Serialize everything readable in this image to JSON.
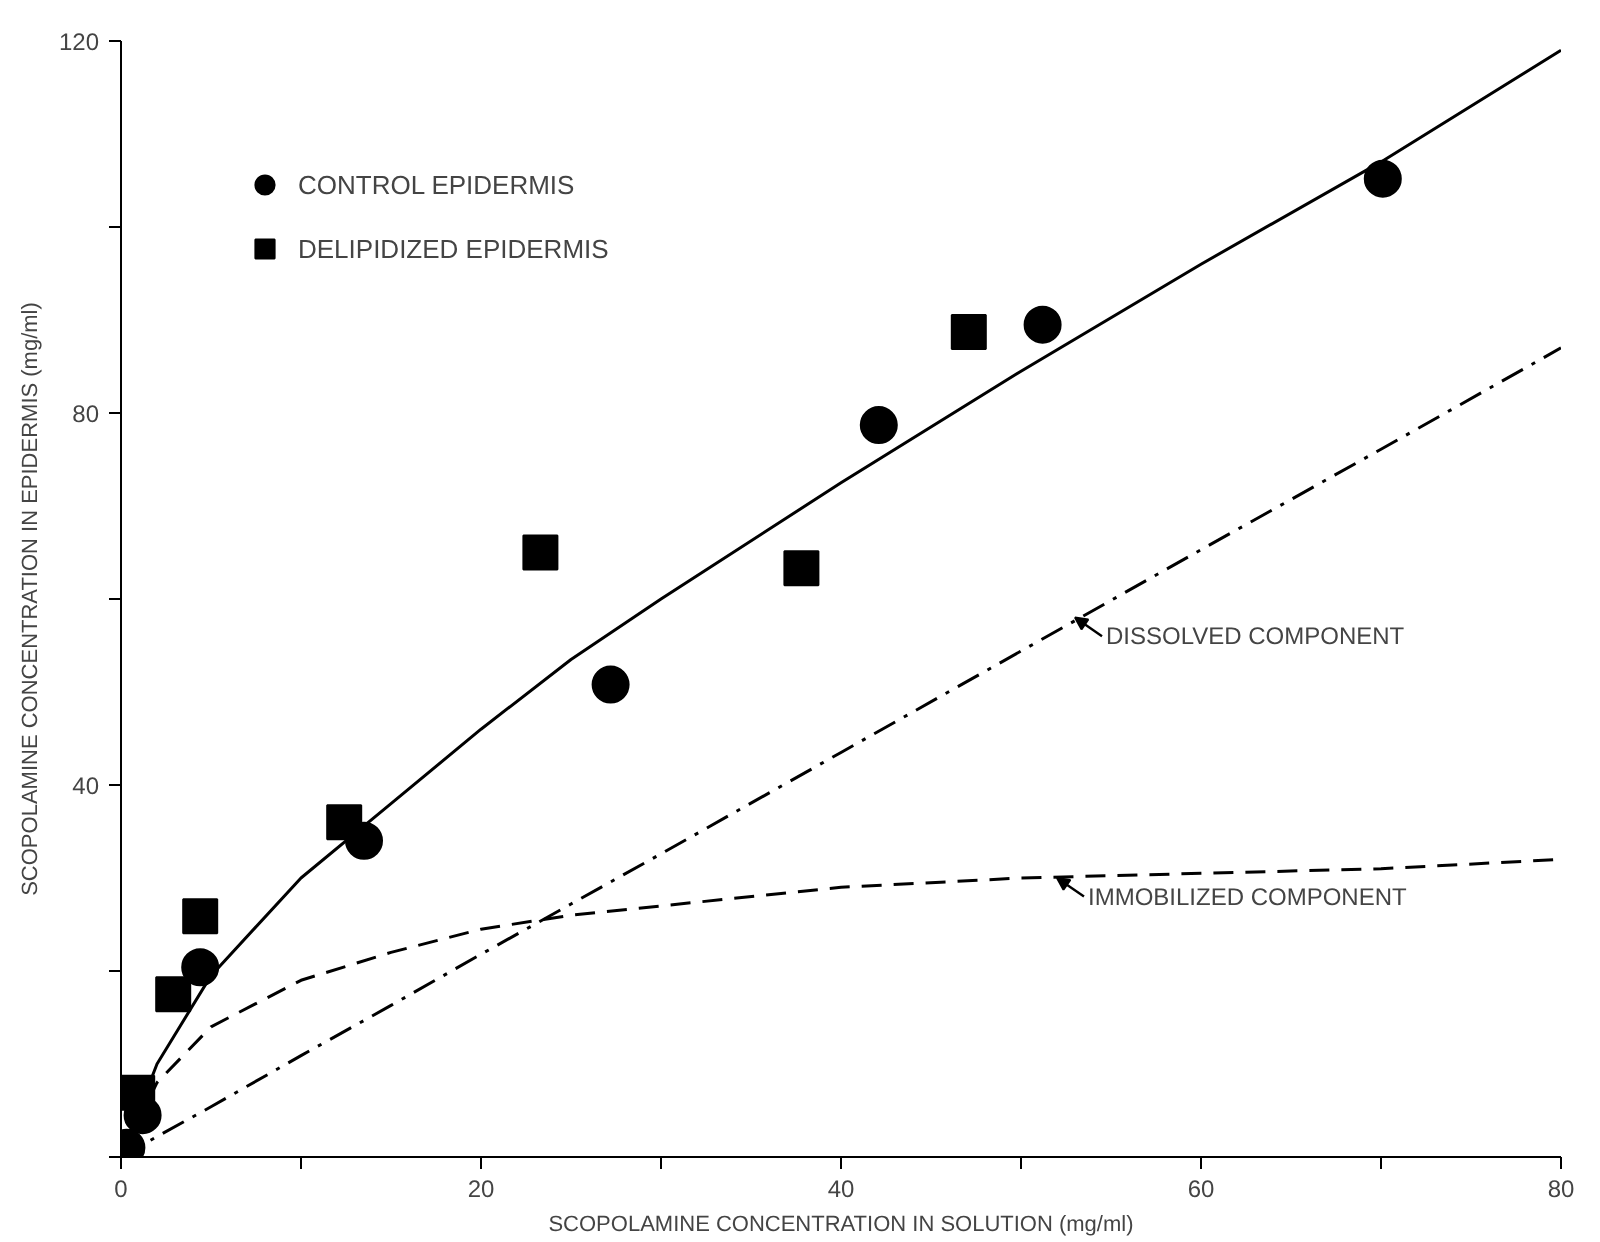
{
  "chart_data": {
    "type": "scatter",
    "xlabel": "SCOPOLAMINE CONCENTRATION IN SOLUTION (mg/ml)",
    "ylabel": "SCOPOLAMINE CONCENTRATION IN EPIDERMIS (mg/ml)",
    "xlim": [
      0,
      80
    ],
    "ylim": [
      0,
      120
    ],
    "xticks": [
      0,
      {
        "value": 10,
        "label": null
      },
      20,
      {
        "value": 30,
        "label": null
      },
      40,
      {
        "value": 50,
        "label": null
      },
      60,
      {
        "value": 70,
        "label": null
      },
      80
    ],
    "yticks": [
      {
        "value": 0,
        "label": null
      },
      {
        "value": 20,
        "label": null
      },
      40,
      {
        "value": 60,
        "label": null
      },
      80,
      {
        "value": 100,
        "label": null
      },
      120
    ],
    "grid": false,
    "legend": "top left",
    "series": [
      {
        "name": "CONTROL EPIDERMIS",
        "color": "#000000",
        "marker": "circle",
        "x": [
          0.3,
          1.2,
          4.4,
          13.5,
          27.2,
          42.1,
          51.2,
          70.1
        ],
        "values": [
          1,
          4.5,
          20.4,
          34,
          50.8,
          78.7,
          89.5,
          105.2
        ]
      },
      {
        "name": "DELIPIDIZED EPIDERMIS",
        "color": "#000000",
        "marker": "square",
        "x": [
          0.9,
          2.9,
          4.4,
          12.4,
          23.3,
          37.8,
          47.1
        ],
        "values": [
          6.9,
          17.5,
          25.9,
          36,
          65,
          63.3,
          88.7
        ]
      },
      {
        "type": "line",
        "color": "#000000",
        "line_style": "solid",
        "x": [
          0,
          2,
          5,
          10,
          15,
          20,
          25,
          30,
          40,
          50,
          60,
          70,
          80
        ],
        "values": [
          0,
          10,
          19.5,
          30,
          38,
          46,
          53.5,
          60,
          72.5,
          84.5,
          96,
          107,
          119
        ]
      },
      {
        "type": "line",
        "color": "#000000",
        "line_style": "dashdot",
        "x": [
          0,
          2,
          5,
          10,
          15,
          20,
          25,
          30,
          40,
          50,
          60,
          70,
          80
        ],
        "values": [
          0,
          2.2,
          5.4,
          10.9,
          16.3,
          21.8,
          27.2,
          32.6,
          43.5,
          54.4,
          65.3,
          76.1,
          87
        ]
      },
      {
        "type": "line",
        "color": "#000000",
        "line_style": "dashed",
        "x": [
          0,
          2,
          5,
          10,
          15,
          20,
          25,
          30,
          40,
          50,
          60,
          70,
          80
        ],
        "values": [
          0,
          8,
          14,
          19,
          22,
          24.5,
          26,
          27,
          29,
          30,
          30.5,
          31,
          32
        ]
      }
    ],
    "annotations": [
      {
        "text": "DISSOLVED COMPONENT",
        "x": 53,
        "y": 58
      },
      {
        "text": "IMMOBILIZED COMPONENT",
        "x": 52,
        "y": 30
      }
    ]
  }
}
